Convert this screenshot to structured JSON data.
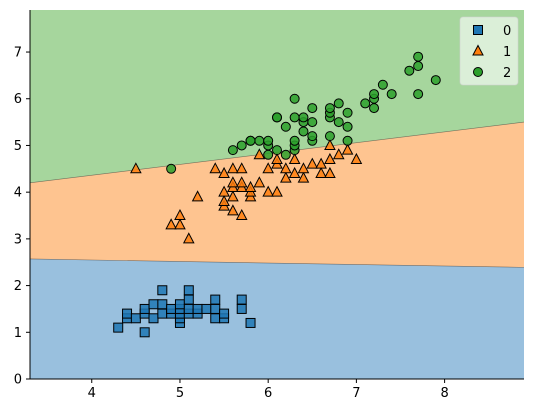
{
  "chart_data": {
    "type": "scatter",
    "title": "",
    "xlabel": "",
    "ylabel": "",
    "xlim": [
      3.3,
      8.9
    ],
    "ylim": [
      0,
      7.9
    ],
    "xticks": [
      "4",
      "5",
      "6",
      "7",
      "8"
    ],
    "yticks": [
      "0",
      "1",
      "2",
      "3",
      "4",
      "5",
      "6",
      "7"
    ],
    "grid": false,
    "legend": "top-right",
    "regions": [
      {
        "name": "0",
        "color": "#99c0de",
        "boundary_upper": [
          [
            3.3,
            2.57
          ],
          [
            8.9,
            2.39
          ]
        ]
      },
      {
        "name": "1",
        "color": "#fec490",
        "boundary_upper": [
          [
            3.3,
            4.2
          ],
          [
            8.9,
            5.5
          ]
        ]
      },
      {
        "name": "2",
        "color": "#a6d69d"
      }
    ],
    "series": [
      {
        "name": "0",
        "marker": "square",
        "color": "#1f77b4",
        "points": [
          [
            4.3,
            1.1
          ],
          [
            4.4,
            1.3
          ],
          [
            4.4,
            1.4
          ],
          [
            4.5,
            1.3
          ],
          [
            4.6,
            1.0
          ],
          [
            4.6,
            1.4
          ],
          [
            4.6,
            1.5
          ],
          [
            4.7,
            1.3
          ],
          [
            4.7,
            1.6
          ],
          [
            4.8,
            1.4
          ],
          [
            4.8,
            1.6
          ],
          [
            4.8,
            1.9
          ],
          [
            4.9,
            1.4
          ],
          [
            4.9,
            1.5
          ],
          [
            5.0,
            1.2
          ],
          [
            5.0,
            1.3
          ],
          [
            5.0,
            1.4
          ],
          [
            5.0,
            1.5
          ],
          [
            5.0,
            1.6
          ],
          [
            5.1,
            1.4
          ],
          [
            5.1,
            1.5
          ],
          [
            5.1,
            1.7
          ],
          [
            5.1,
            1.9
          ],
          [
            5.2,
            1.4
          ],
          [
            5.2,
            1.5
          ],
          [
            5.3,
            1.5
          ],
          [
            5.4,
            1.3
          ],
          [
            5.4,
            1.5
          ],
          [
            5.4,
            1.7
          ],
          [
            5.5,
            1.3
          ],
          [
            5.5,
            1.4
          ],
          [
            5.7,
            1.5
          ],
          [
            5.7,
            1.7
          ],
          [
            5.8,
            1.2
          ]
        ]
      },
      {
        "name": "1",
        "marker": "triangle",
        "color": "#ff7f0e",
        "points": [
          [
            4.9,
            3.3
          ],
          [
            5.0,
            3.3
          ],
          [
            5.0,
            3.5
          ],
          [
            5.1,
            3.0
          ],
          [
            5.2,
            3.9
          ],
          [
            5.4,
            4.5
          ],
          [
            5.5,
            3.7
          ],
          [
            5.5,
            3.8
          ],
          [
            5.5,
            4.0
          ],
          [
            5.5,
            4.4
          ],
          [
            5.6,
            3.6
          ],
          [
            5.6,
            3.9
          ],
          [
            5.6,
            4.1
          ],
          [
            5.6,
            4.2
          ],
          [
            5.6,
            4.5
          ],
          [
            5.7,
            3.5
          ],
          [
            5.7,
            4.1
          ],
          [
            5.7,
            4.2
          ],
          [
            5.7,
            4.5
          ],
          [
            5.8,
            3.9
          ],
          [
            5.8,
            4.0
          ],
          [
            5.8,
            4.1
          ],
          [
            5.9,
            4.2
          ],
          [
            5.9,
            4.8
          ],
          [
            6.0,
            4.0
          ],
          [
            6.0,
            4.5
          ],
          [
            6.1,
            4.0
          ],
          [
            6.1,
            4.6
          ],
          [
            6.1,
            4.7
          ],
          [
            6.2,
            4.3
          ],
          [
            6.2,
            4.5
          ],
          [
            6.3,
            4.4
          ],
          [
            6.3,
            4.7
          ],
          [
            6.4,
            4.3
          ],
          [
            6.4,
            4.5
          ],
          [
            6.5,
            4.6
          ],
          [
            6.6,
            4.4
          ],
          [
            6.6,
            4.6
          ],
          [
            6.7,
            4.4
          ],
          [
            6.7,
            4.7
          ],
          [
            6.7,
            5.0
          ],
          [
            6.8,
            4.8
          ],
          [
            6.9,
            4.9
          ],
          [
            7.0,
            4.7
          ],
          [
            4.5,
            4.5
          ]
        ]
      },
      {
        "name": "2",
        "marker": "circle",
        "color": "#2ca02c",
        "points": [
          [
            4.9,
            4.5
          ],
          [
            5.6,
            4.9
          ],
          [
            5.7,
            5.0
          ],
          [
            5.8,
            5.1
          ],
          [
            5.9,
            5.1
          ],
          [
            6.0,
            4.8
          ],
          [
            6.0,
            5.0
          ],
          [
            6.1,
            4.9
          ],
          [
            6.1,
            5.6
          ],
          [
            6.2,
            4.8
          ],
          [
            6.2,
            5.4
          ],
          [
            6.3,
            4.9
          ],
          [
            6.3,
            5.0
          ],
          [
            6.3,
            5.1
          ],
          [
            6.3,
            5.6
          ],
          [
            6.3,
            6.0
          ],
          [
            6.4,
            5.3
          ],
          [
            6.4,
            5.5
          ],
          [
            6.4,
            5.6
          ],
          [
            6.5,
            5.1
          ],
          [
            6.5,
            5.2
          ],
          [
            6.5,
            5.5
          ],
          [
            6.5,
            5.8
          ],
          [
            6.7,
            5.2
          ],
          [
            6.7,
            5.6
          ],
          [
            6.7,
            5.7
          ],
          [
            6.7,
            5.8
          ],
          [
            6.8,
            5.5
          ],
          [
            6.8,
            5.9
          ],
          [
            6.9,
            5.1
          ],
          [
            6.9,
            5.4
          ],
          [
            6.9,
            5.7
          ],
          [
            7.1,
            5.9
          ],
          [
            7.2,
            5.8
          ],
          [
            7.2,
            6.0
          ],
          [
            7.2,
            6.1
          ],
          [
            7.3,
            6.3
          ],
          [
            7.4,
            6.1
          ],
          [
            7.6,
            6.6
          ],
          [
            7.7,
            6.1
          ],
          [
            7.7,
            6.7
          ],
          [
            7.7,
            6.9
          ],
          [
            7.9,
            6.4
          ],
          [
            5.8,
            5.1
          ],
          [
            6.0,
            5.1
          ],
          [
            6.1,
            5.6
          ]
        ]
      }
    ]
  }
}
